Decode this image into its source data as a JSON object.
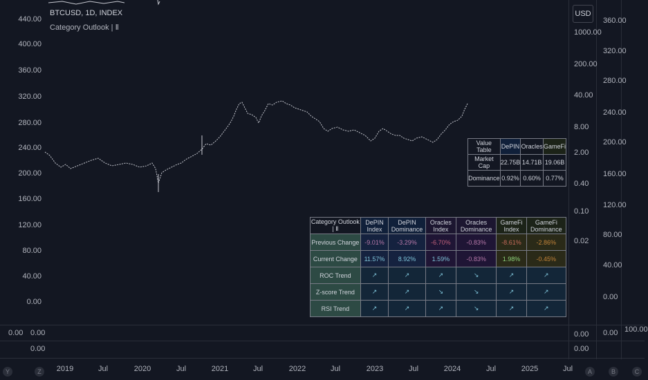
{
  "symbol_title": "BTCUSD, 1D, INDEX",
  "indicator_label": "Category Outlook | Ⅱ",
  "currency_label": "USD",
  "left_axis": [
    "440.00",
    "400.00",
    "360.00",
    "320.00",
    "280.00",
    "240.00",
    "200.00",
    "160.00",
    "120.00",
    "80.00",
    "40.00",
    "0.00"
  ],
  "mid_axis": [
    "1000.00",
    "200.00",
    "40.00",
    "8.00",
    "2.00",
    "0.40",
    "0.10",
    "0.02"
  ],
  "right_axis": [
    "360.00",
    "320.00",
    "280.00",
    "240.00",
    "200.00",
    "160.00",
    "120.00",
    "80.00",
    "40.00",
    "0.00"
  ],
  "pane_values": {
    "left_a": "0.00",
    "left_b": "0.00",
    "mid_a": "0.00",
    "mid_b": "0.00",
    "right_a": "0.00",
    "far_right": "100.00"
  },
  "time_axis": [
    "2019",
    "Jul",
    "2020",
    "Jul",
    "2021",
    "Jul",
    "2022",
    "Jul",
    "2023",
    "Jul",
    "2024",
    "Jul",
    "2025",
    "Jul"
  ],
  "bottom_buttons": [
    "Y",
    "Z",
    "A",
    "B",
    "C"
  ],
  "value_table": {
    "header": [
      "Value Table",
      "DePIN",
      "Oracles",
      "GameFi"
    ],
    "rows": [
      [
        "Market Cap",
        "22.75B",
        "14.71B",
        "19.06B"
      ],
      [
        "Dominance",
        "0.92%",
        "0.60%",
        "0.77%"
      ]
    ]
  },
  "category_table": {
    "header": [
      "Category Outlook | Ⅱ",
      "DePIN Index",
      "DePIN Dominance",
      "Oracles Index",
      "Oracles Dominance",
      "GameFi Index",
      "GameFi Dominance"
    ],
    "rows": [
      [
        "Previous Change",
        "-9.01%",
        "-3.29%",
        "-6.70%",
        "-0.83%",
        "-8.61%",
        "-2.86%"
      ],
      [
        "Current  Change",
        "11.57%",
        "8.92%",
        "1.59%",
        "-0.83%",
        "1.98%",
        "-0.45%"
      ],
      [
        "ROC Trend",
        "↗",
        "↗",
        "↗",
        "↘",
        "↗",
        "↗"
      ],
      [
        "Z-score Trend",
        "↗",
        "↗",
        "↘",
        "↘",
        "↗",
        "↗"
      ],
      [
        "RSI Trend",
        "↗",
        "↗",
        "↗",
        "↘",
        "↗",
        "↗"
      ]
    ]
  },
  "colors": {
    "background": "#131722",
    "grid": "#2a2e39",
    "text": "#b2b5be",
    "price_line": "#d1d4dc"
  }
}
